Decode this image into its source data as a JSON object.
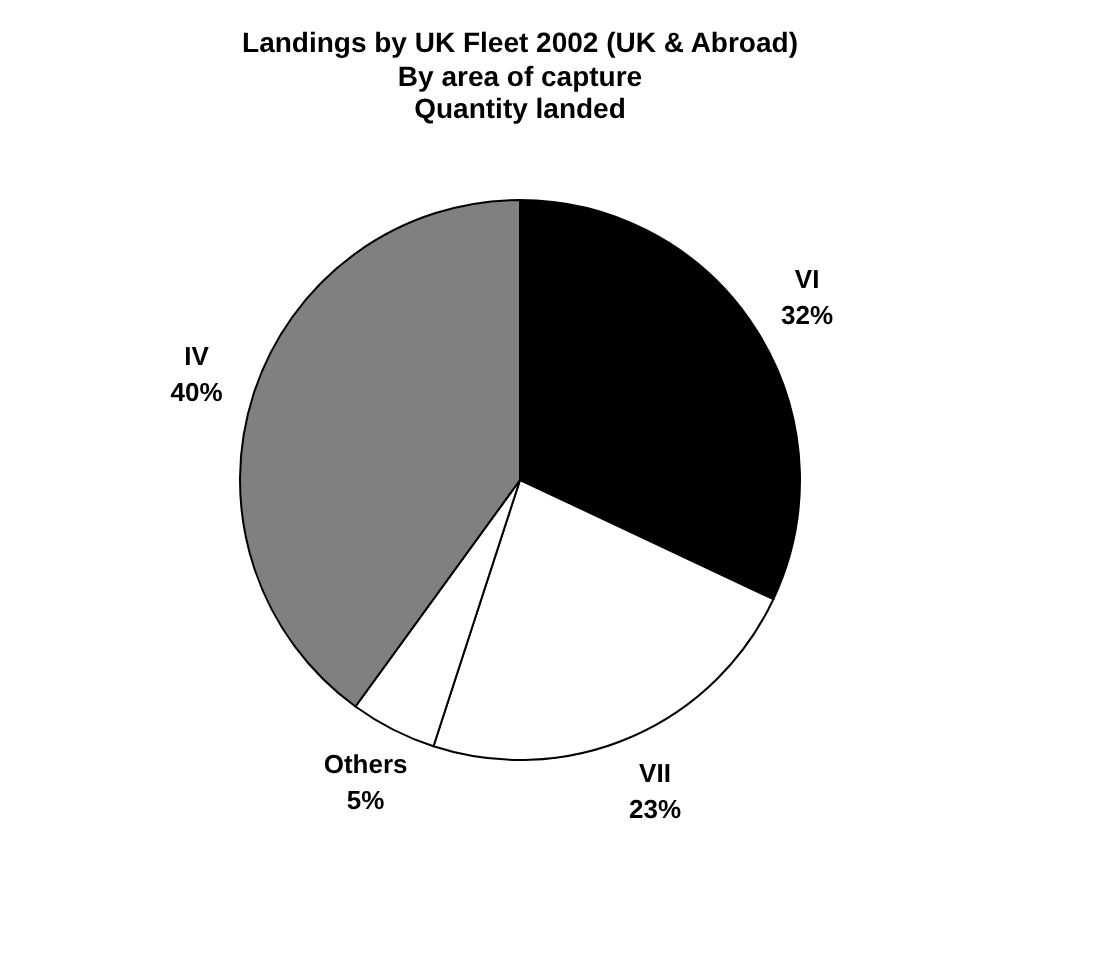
{
  "chart_data": {
    "type": "pie",
    "title": "Landings by UK Fleet 2002 (UK & Abroad)",
    "subtitle": "By area of capture\nQuantity landed",
    "categories": [
      "VI",
      "VII",
      "Others",
      "IV"
    ],
    "values": [
      32,
      23,
      5,
      40
    ],
    "colors": [
      "#000000",
      "#ffffff",
      "#ffffff",
      "#808080"
    ],
    "value_labels": [
      "32%",
      "23%",
      "5%",
      "40%"
    ],
    "legend": false
  }
}
